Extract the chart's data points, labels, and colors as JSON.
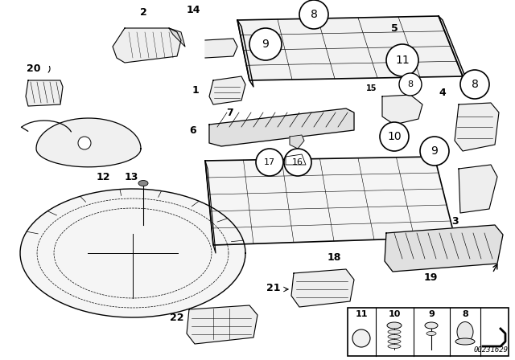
{
  "bg_color": "#ffffff",
  "fig_width": 6.4,
  "fig_height": 4.48,
  "dpi": 100,
  "watermark": "00231629",
  "line_color": "#000000",
  "text_color": "#000000",
  "label_fontsize": 9,
  "circle_label_fontsize": 10
}
